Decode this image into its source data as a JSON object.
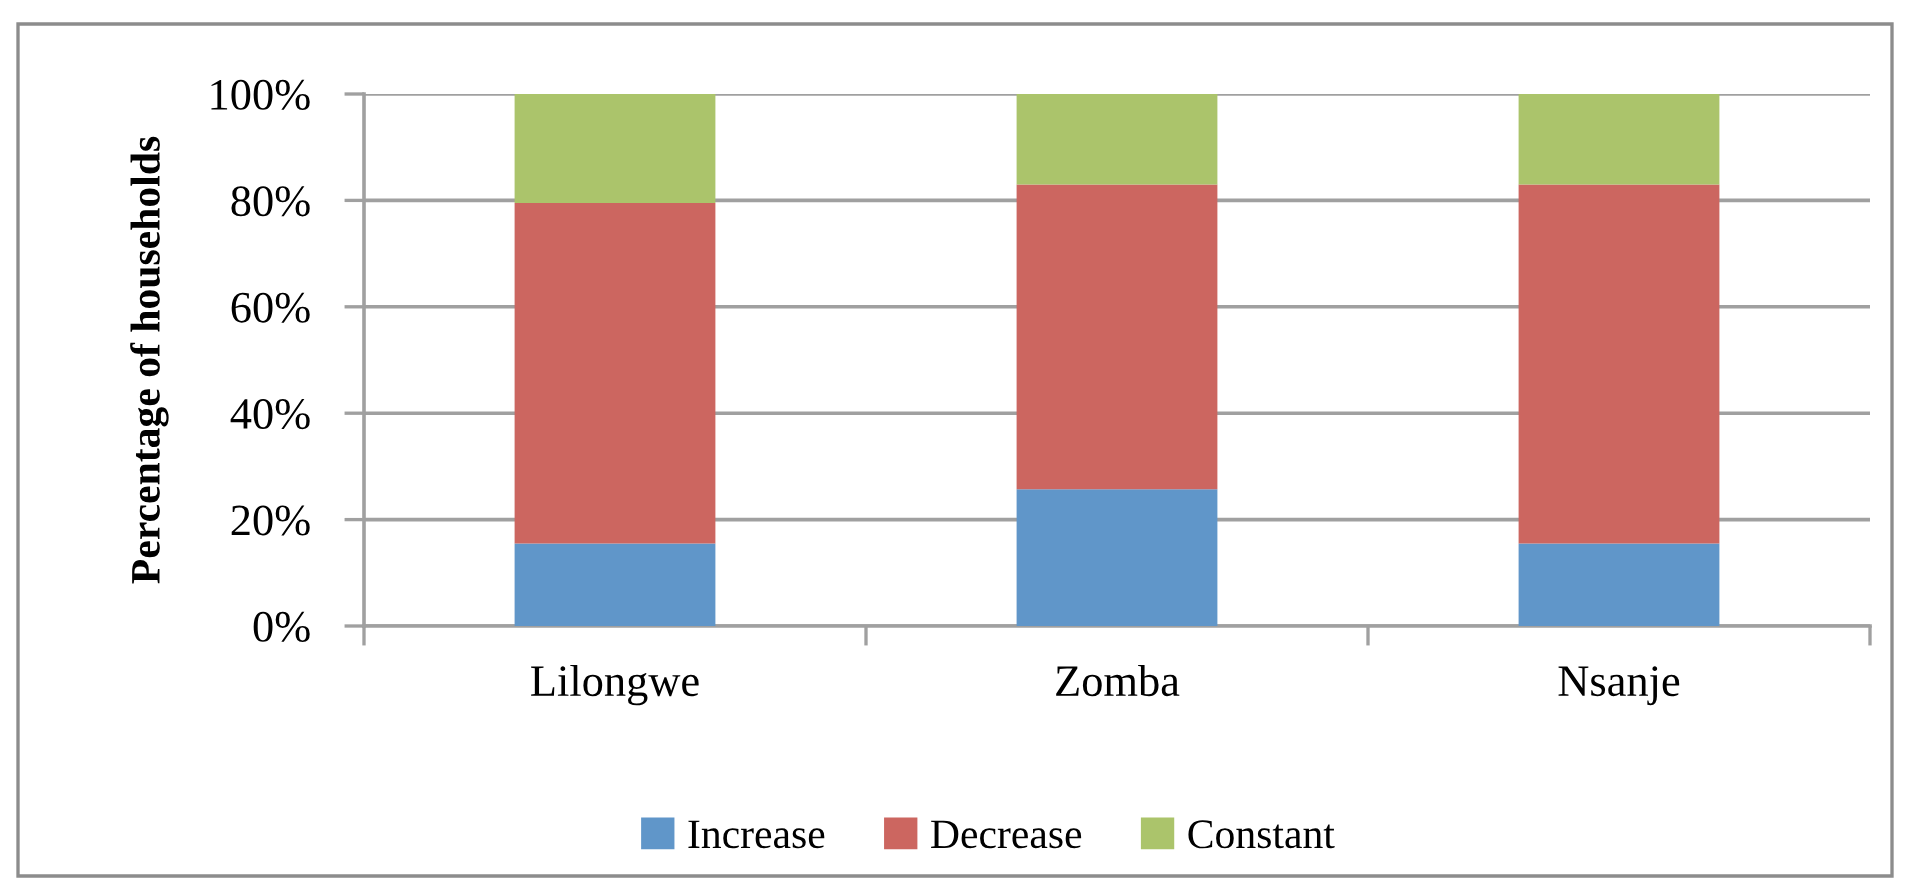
{
  "chart_data": {
    "type": "bar",
    "stacked": true,
    "ylabel": "Percentage of households",
    "categories": [
      "Lilongwe",
      "Zomba",
      "Nsanje"
    ],
    "series": [
      {
        "name": "Increase",
        "color": "#6096c9",
        "values": [
          15.5,
          25.7,
          15.5
        ]
      },
      {
        "name": "Decrease",
        "color": "#cc6660",
        "values": [
          64,
          57.3,
          67.5
        ]
      },
      {
        "name": "Constant",
        "color": "#abc46b",
        "values": [
          20.5,
          17,
          17
        ]
      }
    ],
    "ylim": [
      0,
      100
    ],
    "yticks": [
      {
        "value": 0,
        "label": "0%"
      },
      {
        "value": 20,
        "label": "20%"
      },
      {
        "value": 40,
        "label": "40%"
      },
      {
        "value": 60,
        "label": "60%"
      },
      {
        "value": 80,
        "label": "80%"
      },
      {
        "value": 100,
        "label": "100%"
      }
    ],
    "grid": "y",
    "legend": "bottom"
  }
}
